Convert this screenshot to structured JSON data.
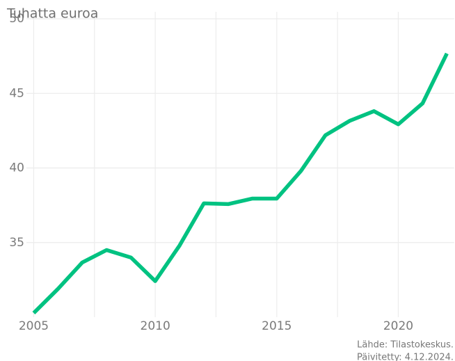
{
  "chart_data": {
    "type": "line",
    "y_axis_label": "Tuhatta euroa",
    "caption": [
      "Lähde: Tilastokeskus.",
      "Päivitetty: 4.12.2024."
    ],
    "x": [
      2005,
      2006,
      2007,
      2008,
      2009,
      2010,
      2011,
      2012,
      2013,
      2014,
      2015,
      2016,
      2017,
      2018,
      2019,
      2020,
      2021,
      2022
    ],
    "series": [
      {
        "name": "Tuhatta euroa",
        "color": "#00c281",
        "values": [
          30.28,
          31.9,
          33.67,
          34.5,
          34.0,
          32.42,
          34.8,
          37.63,
          37.58,
          37.95,
          37.95,
          39.81,
          42.19,
          43.16,
          43.81,
          42.93,
          44.33,
          47.67
        ]
      }
    ],
    "xlim": [
      2004.7,
      2022.3
    ],
    "xticks": [
      2005,
      2010,
      2015,
      2020
    ],
    "xminorticks": [
      2007.5,
      2012.5,
      2017.5
    ],
    "ylim": [
      30,
      50
    ],
    "yticks": [
      35,
      40,
      45,
      50
    ],
    "grid": true
  }
}
